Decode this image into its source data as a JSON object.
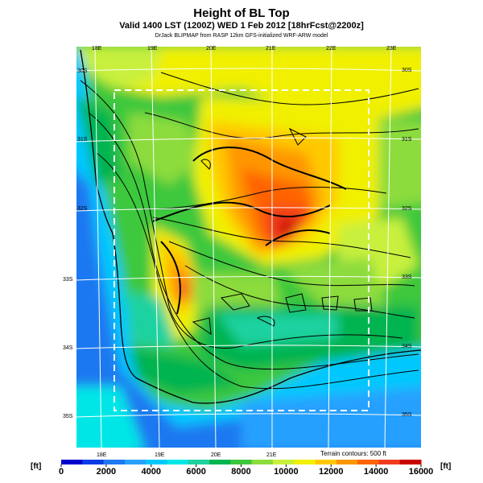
{
  "title": "Height of BL Top",
  "subtitle": "Valid 1400 LST (1200Z) WED 1 Feb 2012 [18hrFcst@2200z]",
  "credit": "DrJack BLIPMAP from RASP 12km GFS-initialized WRF-ARW model",
  "lon_labels_top": [
    "18E",
    "19E",
    "20E",
    "21E",
    "22E",
    "23E"
  ],
  "lon_labels_bottom": [
    "18E",
    "19E",
    "20E",
    "21E"
  ],
  "lat_labels_left": [
    "30S",
    "31S",
    "32S",
    "33S",
    "34S",
    "35S"
  ],
  "lat_labels_right": [
    "30S",
    "31S",
    "32S",
    "33S",
    "34S",
    "35S"
  ],
  "terrain_note": "Terrain contours: 500 ft",
  "colorbar": {
    "unit": "[ft]",
    "tick_labels": [
      "0",
      "2000",
      "4000",
      "6000",
      "8000",
      "10000",
      "12000",
      "14000",
      "16000"
    ],
    "colors": [
      "#0000cc",
      "#0a3ce6",
      "#1e78f0",
      "#28a0ff",
      "#00c8ff",
      "#00e6e6",
      "#1ed2a0",
      "#00b450",
      "#3cc83c",
      "#8cdc3c",
      "#c8f03c",
      "#f0f000",
      "#ffc800",
      "#ff9600",
      "#ff6400",
      "#f03c1e",
      "#c80000"
    ]
  }
}
